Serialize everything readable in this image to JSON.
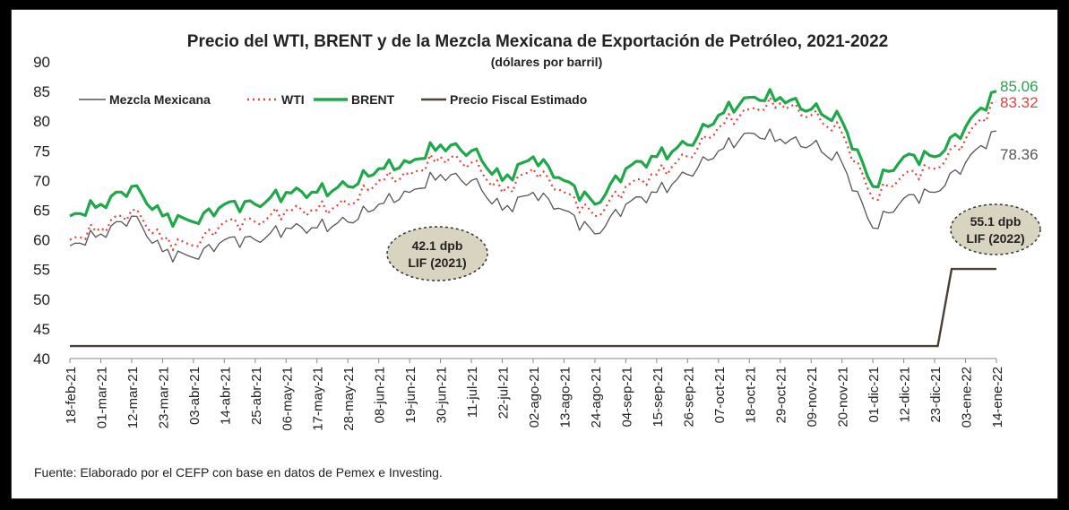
{
  "chart_data": {
    "type": "line",
    "title": "Precio del WTI, BRENT y de la Mezcla Mexicana de Exportación de Petróleo, 2021-2022",
    "subtitle": "(dólares por barril)",
    "source": "Fuente: Elaborado por el CEFP con base en datos de Pemex e Investing.",
    "ylim": [
      40,
      90
    ],
    "yticks": [
      "90",
      "85",
      "80",
      "75",
      "70",
      "65",
      "60",
      "55",
      "50",
      "45",
      "40"
    ],
    "x_tick_labels": [
      "18-feb-21",
      "01-mar-21",
      "12-mar-21",
      "23-mar-21",
      "03-abr-21",
      "14-abr-21",
      "25-abr-21",
      "06-may-21",
      "17-may-21",
      "28-may-21",
      "08-jun-21",
      "19-jun-21",
      "30-jun-21",
      "11-jul-21",
      "22-jul-21",
      "02-ago-21",
      "13-ago-21",
      "24-ago-21",
      "04-sep-21",
      "15-sep-21",
      "26-sep-21",
      "07-oct-21",
      "18-oct-21",
      "29-oct-21",
      "09-nov-21",
      "20-nov-21",
      "01-dic-21",
      "12-dic-21",
      "23-dic-21",
      "03-ene-22",
      "14-ene-22"
    ],
    "legend": [
      "Mezcla Mexicana",
      "WTI",
      "BRENT",
      "Precio Fiscal Estimado"
    ],
    "end_labels": {
      "brent": "85.06",
      "wti": "83.32",
      "mezcla": "78.36"
    },
    "annotations": [
      {
        "line1": "42.1 dpb",
        "line2": "LIF (2021)"
      },
      {
        "line1": "55.1 dpb",
        "line2": "LIF (2022)"
      }
    ],
    "colors": {
      "mezcla": "#555555",
      "wti": "#e8403a",
      "brent": "#1ea84a",
      "fiscal": "#4a4030",
      "ellipse": "#d9d4bf"
    },
    "series": [
      {
        "name": "BRENT",
        "key": "brent",
        "x": [
          "18-feb-21",
          "01-mar-21",
          "12-mar-21",
          "23-mar-21",
          "03-abr-21",
          "14-abr-21",
          "25-abr-21",
          "06-may-21",
          "17-may-21",
          "28-may-21",
          "08-jun-21",
          "19-jun-21",
          "30-jun-21",
          "11-jul-21",
          "22-jul-21",
          "02-ago-21",
          "13-ago-21",
          "24-ago-21",
          "04-sep-21",
          "15-sep-21",
          "26-sep-21",
          "07-oct-21",
          "18-oct-21",
          "29-oct-21",
          "09-nov-21",
          "20-nov-21",
          "01-dic-21",
          "12-dic-21",
          "23-dic-21",
          "03-ene-22",
          "14-ene-22"
        ],
        "values": [
          64,
          66,
          69,
          64,
          63,
          66,
          66,
          68,
          68,
          69,
          72,
          73,
          76,
          75,
          70,
          74,
          70,
          66,
          72,
          74,
          76,
          81,
          84,
          84,
          82,
          80,
          69,
          74,
          74,
          79,
          85.06
        ]
      },
      {
        "name": "WTI",
        "key": "wti",
        "x": [
          "18-feb-21",
          "01-mar-21",
          "12-mar-21",
          "23-mar-21",
          "03-abr-21",
          "14-abr-21",
          "25-abr-21",
          "06-may-21",
          "17-may-21",
          "28-may-21",
          "08-jun-21",
          "19-jun-21",
          "30-jun-21",
          "11-jul-21",
          "22-jul-21",
          "02-ago-21",
          "13-ago-21",
          "24-ago-21",
          "04-sep-21",
          "15-sep-21",
          "26-sep-21",
          "07-oct-21",
          "18-oct-21",
          "29-oct-21",
          "09-nov-21",
          "20-nov-21",
          "01-dic-21",
          "12-dic-21",
          "23-dic-21",
          "03-ene-22",
          "14-ene-22"
        ],
        "values": [
          60,
          62,
          65,
          60,
          59,
          63,
          63,
          65,
          65,
          66,
          70,
          71,
          74,
          73,
          68,
          72,
          68,
          64,
          69,
          71,
          74,
          79,
          82,
          83,
          81,
          78,
          67,
          71,
          72,
          77,
          83.32
        ]
      },
      {
        "name": "Mezcla Mexicana",
        "key": "mezcla",
        "x": [
          "18-feb-21",
          "01-mar-21",
          "12-mar-21",
          "23-mar-21",
          "03-abr-21",
          "14-abr-21",
          "25-abr-21",
          "06-may-21",
          "17-may-21",
          "28-may-21",
          "08-jun-21",
          "19-jun-21",
          "30-jun-21",
          "11-jul-21",
          "22-jul-21",
          "02-ago-21",
          "13-ago-21",
          "24-ago-21",
          "04-sep-21",
          "15-sep-21",
          "26-sep-21",
          "07-oct-21",
          "18-oct-21",
          "29-oct-21",
          "09-nov-21",
          "20-nov-21",
          "01-dic-21",
          "12-dic-21",
          "23-dic-21",
          "03-ene-22",
          "14-ene-22"
        ],
        "values": [
          59,
          61,
          64,
          58,
          57,
          60,
          60,
          62,
          62,
          63,
          66,
          68,
          71,
          70,
          65,
          68,
          65,
          61,
          66,
          68,
          71,
          75,
          78,
          77,
          76,
          73,
          62,
          67,
          68,
          73,
          78.36
        ]
      },
      {
        "name": "Precio Fiscal Estimado",
        "key": "fiscal",
        "x": [
          "18-feb-21",
          "01-mar-21",
          "12-mar-21",
          "23-mar-21",
          "03-abr-21",
          "14-abr-21",
          "25-abr-21",
          "06-may-21",
          "17-may-21",
          "28-may-21",
          "08-jun-21",
          "19-jun-21",
          "30-jun-21",
          "11-jul-21",
          "22-jul-21",
          "02-ago-21",
          "13-ago-21",
          "24-ago-21",
          "04-sep-21",
          "15-sep-21",
          "26-sep-21",
          "07-oct-21",
          "18-oct-21",
          "29-oct-21",
          "09-nov-21",
          "20-nov-21",
          "01-dic-21",
          "12-dic-21",
          "23-dic-21",
          "03-ene-22",
          "14-ene-22"
        ],
        "values": [
          42.1,
          42.1,
          42.1,
          42.1,
          42.1,
          42.1,
          42.1,
          42.1,
          42.1,
          42.1,
          42.1,
          42.1,
          42.1,
          42.1,
          42.1,
          42.1,
          42.1,
          42.1,
          42.1,
          42.1,
          42.1,
          42.1,
          42.1,
          42.1,
          42.1,
          42.1,
          42.1,
          42.1,
          42.1,
          55.1,
          55.1
        ]
      }
    ]
  }
}
